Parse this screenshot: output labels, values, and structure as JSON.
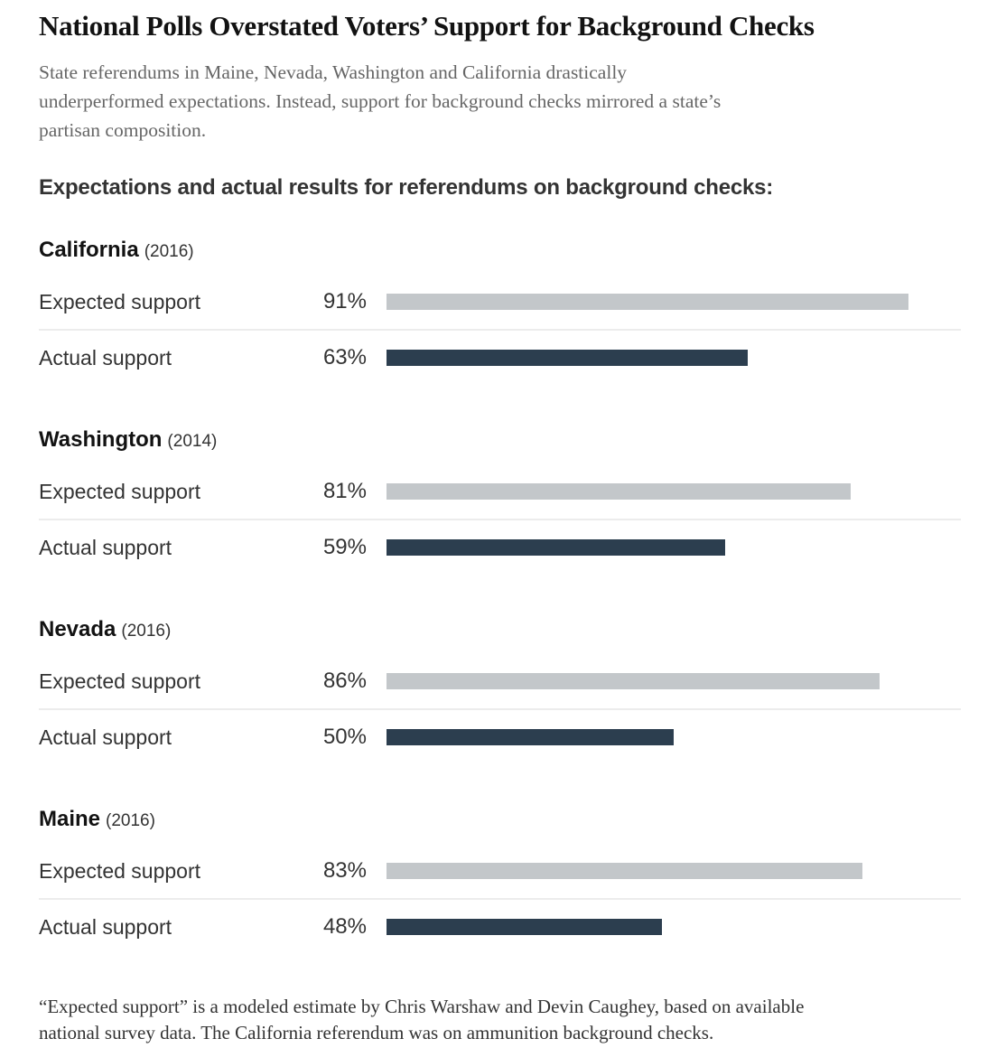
{
  "page": {
    "title": "National Polls Overstated Voters’ Support for Background Checks",
    "subtitle_lines": [
      "State referendums in Maine, Nevada, Washington and California drastically",
      "underperformed expectations. Instead, support for background checks mirrored a state’s",
      "partisan composition."
    ],
    "subhead": "Expectations and actual results for referendums on background checks:",
    "footnote_lines": [
      "“Expected support” is a modeled estimate by Chris Warshaw and Devin Caughey, based on available",
      "national survey data. The California referendum was on ammunition background checks."
    ]
  },
  "chart_data": {
    "type": "bar",
    "orientation": "horizontal",
    "unit": "%",
    "value_axis_range": [
      0,
      100
    ],
    "grid": false,
    "legend": false,
    "row_labels": {
      "expected": "Expected support",
      "actual": "Actual support"
    },
    "colors": {
      "expected_bar": "#c3c7ca",
      "actual_bar": "#2c3e4f",
      "row_divider": "#ececec"
    },
    "groups": [
      {
        "state": "California",
        "year": "(2016)",
        "expected": 91,
        "actual": 63
      },
      {
        "state": "Washington",
        "year": "(2014)",
        "expected": 81,
        "actual": 59
      },
      {
        "state": "Nevada",
        "year": "(2016)",
        "expected": 86,
        "actual": 50
      },
      {
        "state": "Maine",
        "year": "(2016)",
        "expected": 83,
        "actual": 48
      }
    ]
  }
}
